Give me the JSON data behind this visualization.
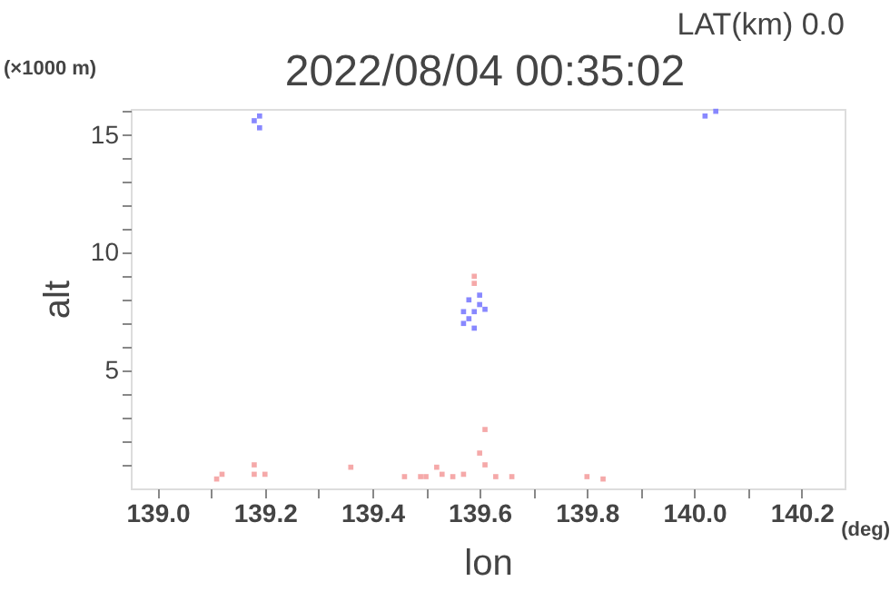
{
  "chart_data": {
    "type": "scatter",
    "title": "2022/08/04 00:35:02",
    "xlabel": "lon",
    "ylabel": "alt",
    "annotations": [
      "LAT(km) 0.0",
      "(×1000 m)",
      "(deg)"
    ],
    "xlim": [
      138.95,
      140.28
    ],
    "xticks": [
      {
        "value": 139.0,
        "label": "139.0"
      },
      {
        "value": 139.1,
        "label": null
      },
      {
        "value": 139.2,
        "label": "139.2"
      },
      {
        "value": 139.3,
        "label": null
      },
      {
        "value": 139.4,
        "label": "139.4"
      },
      {
        "value": 139.5,
        "label": null
      },
      {
        "value": 139.6,
        "label": "139.6"
      },
      {
        "value": 139.7,
        "label": null
      },
      {
        "value": 139.8,
        "label": "139.8"
      },
      {
        "value": 139.9,
        "label": null
      },
      {
        "value": 140.0,
        "label": "140.0"
      },
      {
        "value": 140.1,
        "label": null
      },
      {
        "value": 140.2,
        "label": "140.2"
      }
    ],
    "ylim": [
      0,
      16.1
    ],
    "yticks": [
      {
        "value": 1,
        "label": null
      },
      {
        "value": 2,
        "label": null
      },
      {
        "value": 3,
        "label": null
      },
      {
        "value": 4,
        "label": null
      },
      5,
      {
        "value": 6,
        "label": null
      },
      {
        "value": 7,
        "label": null
      },
      {
        "value": 8,
        "label": null
      },
      {
        "value": 9,
        "label": null
      },
      10,
      {
        "value": 11,
        "label": null
      },
      {
        "value": 12,
        "label": null
      },
      {
        "value": 13,
        "label": null
      },
      {
        "value": 14,
        "label": null
      },
      15,
      {
        "value": 16,
        "label": null
      }
    ],
    "grid": false,
    "legend": false,
    "marker": "square",
    "series": [
      {
        "color": "#7b7bff",
        "x": [
          139.57,
          139.57,
          139.58,
          139.58,
          139.6,
          139.6,
          139.61,
          139.59,
          139.59,
          139.18,
          139.19,
          139.19,
          140.02,
          140.04
        ],
        "values": [
          7.0,
          7.5,
          8.0,
          7.2,
          7.8,
          8.2,
          7.6,
          6.8,
          7.5,
          15.6,
          15.3,
          15.8,
          15.8,
          16.0
        ]
      },
      {
        "color": "#f4a0a0",
        "x": [
          139.59,
          139.59,
          139.11,
          139.12,
          139.18,
          139.18,
          139.2,
          139.36,
          139.46,
          139.49,
          139.5,
          139.52,
          139.53,
          139.55,
          139.57,
          139.6,
          139.61,
          139.61,
          139.63,
          139.66,
          139.8,
          139.83
        ],
        "values": [
          9.0,
          8.7,
          0.4,
          0.6,
          1.0,
          0.6,
          0.6,
          0.9,
          0.5,
          0.5,
          0.5,
          0.9,
          0.6,
          0.5,
          0.6,
          1.5,
          2.5,
          1.0,
          0.5,
          0.5,
          0.5,
          0.4
        ]
      }
    ]
  }
}
